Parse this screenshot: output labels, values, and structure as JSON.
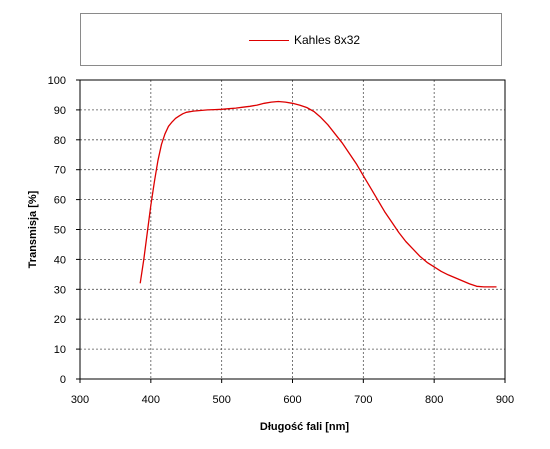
{
  "chart_data": {
    "type": "line",
    "title": "",
    "xlabel": "Długość fali [nm]",
    "ylabel": "Transmisja [%]",
    "xlim": [
      300,
      900
    ],
    "ylim": [
      0,
      100
    ],
    "xticks": [
      300,
      400,
      500,
      600,
      700,
      800,
      900
    ],
    "yticks": [
      0,
      10,
      20,
      30,
      40,
      50,
      60,
      70,
      80,
      90,
      100
    ],
    "grid": true,
    "legend_position": "top",
    "series": [
      {
        "name": "Kahles 8x32",
        "color": "#dd0000",
        "x": [
          385,
          390,
          395,
          400,
          405,
          410,
          415,
          420,
          425,
          430,
          435,
          440,
          445,
          450,
          460,
          470,
          480,
          490,
          500,
          510,
          520,
          530,
          540,
          550,
          560,
          570,
          580,
          590,
          600,
          610,
          620,
          630,
          640,
          650,
          660,
          670,
          680,
          690,
          700,
          710,
          720,
          730,
          740,
          750,
          760,
          770,
          780,
          790,
          800,
          810,
          820,
          830,
          840,
          850,
          860,
          870,
          880,
          888
        ],
        "y": [
          32,
          40,
          49,
          58,
          66,
          73,
          78.5,
          82,
          84.5,
          86,
          87.2,
          88,
          88.7,
          89.2,
          89.6,
          89.8,
          90,
          90.1,
          90.2,
          90.4,
          90.6,
          90.9,
          91.2,
          91.6,
          92.2,
          92.6,
          92.8,
          92.6,
          92.2,
          91.6,
          90.8,
          89.5,
          87.5,
          85,
          82,
          79,
          75.5,
          72,
          68,
          64,
          60,
          56,
          52.5,
          49,
          46,
          43.5,
          41,
          39,
          37.5,
          36,
          34.8,
          33.8,
          32.8,
          31.8,
          31,
          30.8,
          30.8,
          30.8
        ]
      }
    ]
  }
}
